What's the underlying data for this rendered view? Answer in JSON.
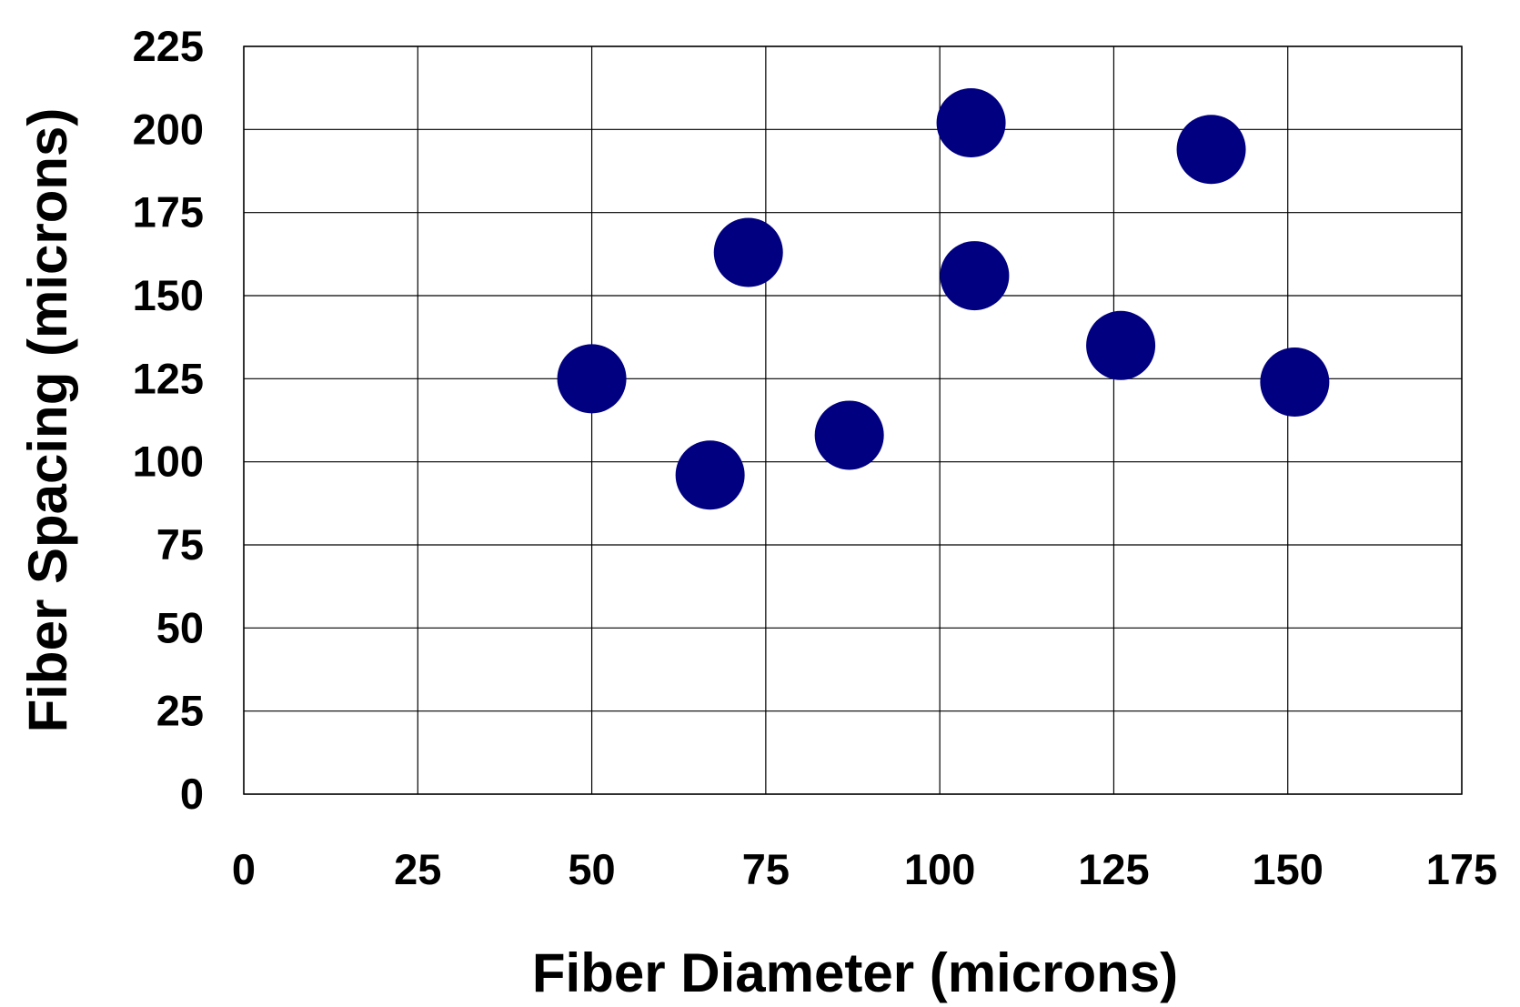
{
  "chart_data": {
    "type": "scatter",
    "xlabel": "Fiber Diameter (microns)",
    "ylabel": "Fiber Spacing (microns)",
    "xlim": [
      0,
      175
    ],
    "ylim": [
      0,
      225
    ],
    "x_ticks": [
      0,
      25,
      50,
      75,
      100,
      125,
      150,
      175
    ],
    "y_ticks": [
      0,
      25,
      50,
      75,
      100,
      125,
      150,
      175,
      200,
      225
    ],
    "grid": true,
    "legend": "none",
    "marker_color": "#000080",
    "series": [
      {
        "x": [
          50,
          67,
          72.5,
          87,
          104.5,
          105,
          126,
          139,
          151
        ],
        "y": [
          125,
          96,
          163,
          108,
          202,
          156,
          135,
          194,
          124
        ]
      }
    ]
  }
}
